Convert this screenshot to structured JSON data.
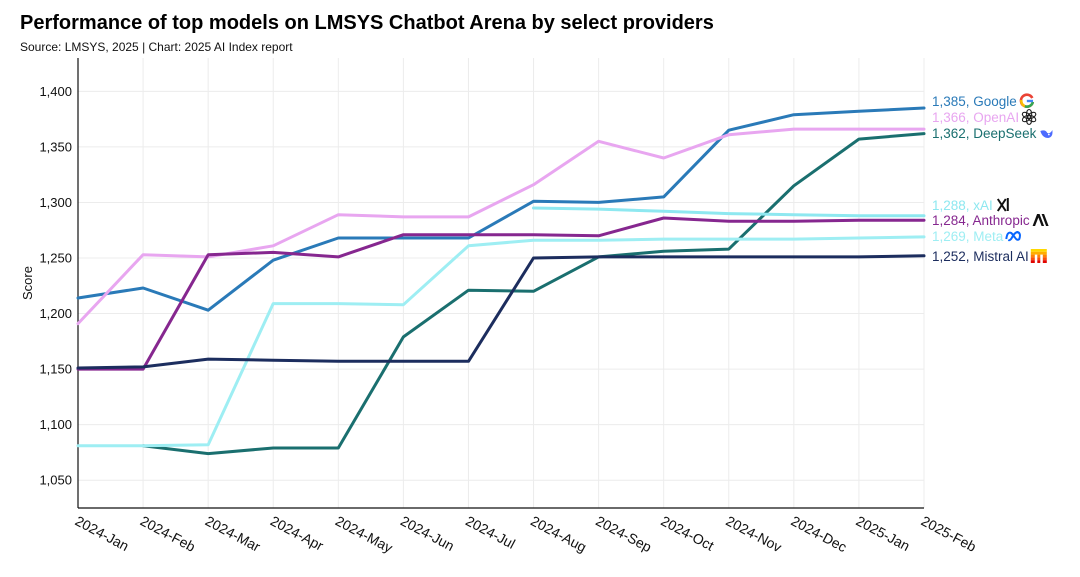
{
  "chart_data": {
    "type": "line",
    "title": "Performance of top models on LMSYS Chatbot Arena by select providers",
    "subtitle": "Source: LMSYS, 2025 | Chart: 2025 AI Index report",
    "xlabel": "",
    "ylabel": "Score",
    "ylim": [
      1025,
      1430
    ],
    "yticks": [
      1050,
      1100,
      1150,
      1200,
      1250,
      1300,
      1350,
      1400
    ],
    "ytick_labels": [
      "1,050",
      "1,100",
      "1,150",
      "1,200",
      "1,250",
      "1,300",
      "1,350",
      "1,400"
    ],
    "grid": true,
    "x": [
      "2024-Jan",
      "2024-Feb",
      "2024-Mar",
      "2024-Apr",
      "2024-May",
      "2024-Jun",
      "2024-Jul",
      "2024-Aug",
      "2024-Sep",
      "2024-Oct",
      "2024-Nov",
      "2024-Dec",
      "2025-Jan",
      "2025-Feb"
    ],
    "series": [
      {
        "name": "Google",
        "color": "#2a7ab8",
        "end_label": "1,385, Google",
        "icon": "google-icon",
        "values": [
          1214,
          1223,
          1203,
          1248,
          1268,
          1268,
          1268,
          1301,
          1300,
          1305,
          1365,
          1379,
          1382,
          1385
        ]
      },
      {
        "name": "OpenAI",
        "color": "#e8a6f0",
        "end_label": "1,366, OpenAI",
        "icon": "openai-icon",
        "values": [
          1191,
          1253,
          1251,
          1261,
          1289,
          1287,
          1287,
          1316,
          1355,
          1340,
          1361,
          1366,
          1366,
          1366
        ]
      },
      {
        "name": "DeepSeek",
        "color": "#1a6f6f",
        "end_label": "1,362, DeepSeek",
        "icon": "deepseek-icon",
        "values": [
          null,
          1081,
          1074,
          1079,
          1079,
          1179,
          1221,
          1220,
          1251,
          1256,
          1258,
          1315,
          1357,
          1362
        ]
      },
      {
        "name": "xAI",
        "color": "#8ee8f0",
        "end_label": "1,288, xAI",
        "icon": "xai-icon",
        "values": [
          null,
          null,
          null,
          null,
          null,
          null,
          null,
          1295,
          1294,
          1292,
          1290,
          1289,
          1288,
          1288
        ]
      },
      {
        "name": "Anthropic",
        "color": "#86278f",
        "end_label": "1,284, Anthropic",
        "icon": "anthropic-icon",
        "values": [
          1150,
          1150,
          1253,
          1255,
          1251,
          1271,
          1271,
          1271,
          1270,
          1286,
          1283,
          1283,
          1284,
          1284
        ]
      },
      {
        "name": "Meta",
        "color": "#9eeef3",
        "end_label": "1,269, Meta",
        "icon": "meta-icon",
        "values": [
          1081,
          1081,
          1082,
          1209,
          1209,
          1208,
          1261,
          1266,
          1266,
          1267,
          1267,
          1267,
          1268,
          1269
        ]
      },
      {
        "name": "Mistral AI",
        "color": "#1c2d5e",
        "end_label": "1,252, Mistral AI",
        "icon": "mistral-icon",
        "values": [
          1151,
          1152,
          1159,
          1158,
          1157,
          1157,
          1157,
          1250,
          1251,
          1251,
          1251,
          1251,
          1251,
          1252
        ]
      }
    ]
  }
}
